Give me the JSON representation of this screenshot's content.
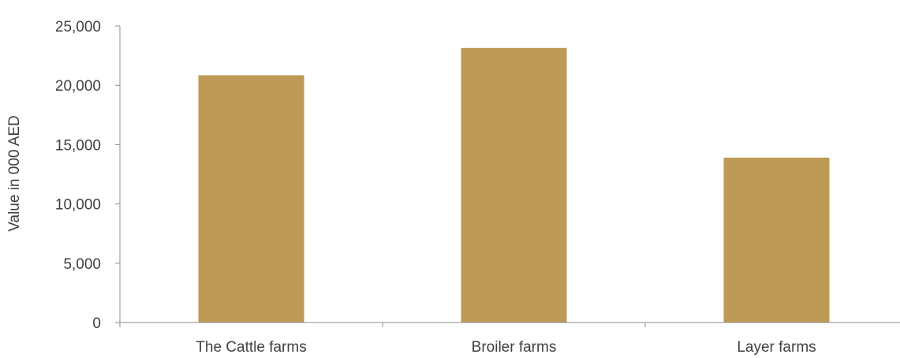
{
  "chart_data": {
    "type": "bar",
    "categories": [
      "The Cattle farms",
      "Broiler farms",
      "Layer farms"
    ],
    "values": [
      20850,
      23150,
      13900
    ],
    "title": "",
    "xlabel": "",
    "ylabel": "Value in 000 AED",
    "ylim": [
      0,
      25000
    ],
    "yticks": [
      0,
      5000,
      10000,
      15000,
      20000,
      25000
    ],
    "ytick_labels": [
      "0",
      "5,000",
      "10,000",
      "15,000",
      "20,000",
      "25,000"
    ],
    "grid": false,
    "legend": "none",
    "colors": {
      "bar": "#BD9A56",
      "axis": "#8C8C8C",
      "text": "#404040"
    }
  }
}
